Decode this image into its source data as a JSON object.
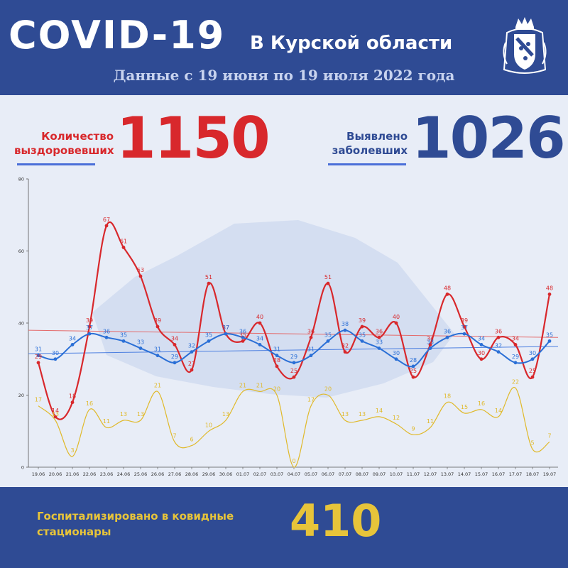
{
  "header": {
    "title": "COVID-19",
    "region": "В Курской области",
    "subtitle": "Данные с 19 июня по 19 июля 2022 года",
    "emblem_icon": "kursk-coat-of-arms-icon"
  },
  "stats": {
    "recovered": {
      "label_line1": "Количество",
      "label_line2": "выздоровевших",
      "value": "1150",
      "color": "#d8282c"
    },
    "detected": {
      "label_line1": "Выявлено",
      "label_line2": "заболевших",
      "value": "1026",
      "color": "#2f4b94"
    }
  },
  "footer": {
    "hospitalized_label": "Госпитализировано в ковидные стационары",
    "hospitalized_value": "410",
    "color": "#e7c43a"
  },
  "chart_data": {
    "type": "line",
    "categories": [
      "19.06",
      "20.06",
      "21.06",
      "22.06",
      "23.06",
      "24.06",
      "25.06",
      "26.06",
      "27.06",
      "28.06",
      "29.06",
      "30.06",
      "01.07",
      "02.07",
      "03.07",
      "04.07",
      "05.07",
      "06.07",
      "07.07",
      "08.07",
      "09.07",
      "10.07",
      "11.07",
      "12.07",
      "13.07",
      "14.07",
      "15.07",
      "16.07",
      "17.07",
      "18.07",
      "19.07"
    ],
    "ylim": [
      0,
      80
    ],
    "yticks": [
      0,
      20,
      40,
      60,
      80
    ],
    "grid": false,
    "series": [
      {
        "values": [
          29,
          14,
          18,
          39,
          67,
          61,
          53,
          39,
          34,
          27,
          51,
          37,
          35,
          40,
          28,
          25,
          36,
          51,
          32,
          39,
          36,
          40,
          25,
          34,
          48,
          39,
          30,
          36,
          34,
          25,
          48
        ],
        "color": "#d8282c"
      },
      {
        "values": [
          31,
          30,
          34,
          37,
          36,
          35,
          33,
          31,
          29,
          32,
          35,
          37,
          36,
          34,
          31,
          29,
          31,
          35,
          38,
          35,
          33,
          30,
          28,
          33,
          36,
          37,
          34,
          32,
          29,
          30,
          35
        ],
        "color": "#2a6fd6"
      },
      {
        "values": [
          17,
          13,
          3,
          16,
          11,
          13,
          13,
          21,
          7,
          6,
          10,
          13,
          21,
          21,
          20,
          0,
          17,
          20,
          13,
          13,
          14,
          12,
          9,
          11,
          18,
          15,
          16,
          14,
          22,
          5,
          7
        ],
        "color": "#e0b92a"
      }
    ],
    "trendlines": [
      {
        "from": 38,
        "to": 36,
        "color": "#e46a6a"
      },
      {
        "from": 31.5,
        "to": 33.5,
        "color": "#4c7fe0"
      }
    ]
  }
}
